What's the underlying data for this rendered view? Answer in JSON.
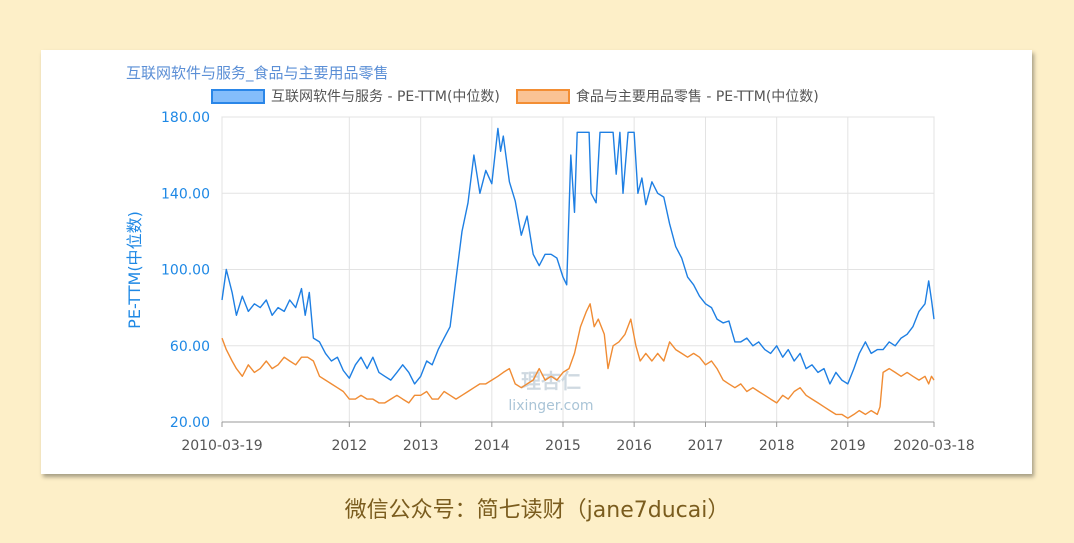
{
  "chart_data": {
    "type": "line",
    "title": "互联网软件与服务_食品与主要用品零售",
    "ylabel": "PE-TTM(中位数)",
    "ylim": [
      20,
      180
    ],
    "yticks": [
      "20.00",
      "60.00",
      "100.00",
      "140.00",
      "180.00"
    ],
    "x_start": "2010-03-19",
    "x_end": "2020-03-18",
    "xticks": [
      {
        "label": "2010-03-19",
        "x": "2010-03-19"
      },
      {
        "label": "2012",
        "x": "2012-01-01"
      },
      {
        "label": "2013",
        "x": "2013-01-01"
      },
      {
        "label": "2014",
        "x": "2014-01-01"
      },
      {
        "label": "2015",
        "x": "2015-01-01"
      },
      {
        "label": "2016",
        "x": "2016-01-01"
      },
      {
        "label": "2017",
        "x": "2017-01-01"
      },
      {
        "label": "2018",
        "x": "2018-01-01"
      },
      {
        "label": "2019",
        "x": "2019-01-01"
      },
      {
        "label": "2020-03-18",
        "x": "2020-03-18"
      }
    ],
    "grid": true,
    "legend_position": "top",
    "series": [
      {
        "name": "互联网软件与服务 - PE-TTM(中位数)",
        "color": "#1e7fe3",
        "points": [
          [
            "2010-03-19",
            84
          ],
          [
            "2010-04-10",
            100
          ],
          [
            "2010-05-10",
            88
          ],
          [
            "2010-06-01",
            76
          ],
          [
            "2010-07-01",
            86
          ],
          [
            "2010-08-01",
            78
          ],
          [
            "2010-09-01",
            82
          ],
          [
            "2010-10-01",
            80
          ],
          [
            "2010-11-01",
            84
          ],
          [
            "2010-12-01",
            76
          ],
          [
            "2011-01-01",
            80
          ],
          [
            "2011-02-01",
            78
          ],
          [
            "2011-03-01",
            84
          ],
          [
            "2011-04-01",
            80
          ],
          [
            "2011-05-01",
            90
          ],
          [
            "2011-05-20",
            76
          ],
          [
            "2011-06-10",
            88
          ],
          [
            "2011-07-01",
            64
          ],
          [
            "2011-08-01",
            62
          ],
          [
            "2011-09-01",
            56
          ],
          [
            "2011-10-01",
            52
          ],
          [
            "2011-11-01",
            54
          ],
          [
            "2011-12-01",
            47
          ],
          [
            "2012-01-01",
            43
          ],
          [
            "2012-02-01",
            50
          ],
          [
            "2012-03-01",
            54
          ],
          [
            "2012-04-01",
            48
          ],
          [
            "2012-05-01",
            54
          ],
          [
            "2012-06-01",
            46
          ],
          [
            "2012-07-01",
            44
          ],
          [
            "2012-08-01",
            42
          ],
          [
            "2012-09-01",
            46
          ],
          [
            "2012-10-01",
            50
          ],
          [
            "2012-11-01",
            46
          ],
          [
            "2012-12-01",
            40
          ],
          [
            "2013-01-01",
            44
          ],
          [
            "2013-02-01",
            52
          ],
          [
            "2013-03-01",
            50
          ],
          [
            "2013-04-01",
            58
          ],
          [
            "2013-05-01",
            64
          ],
          [
            "2013-06-01",
            70
          ],
          [
            "2013-07-01",
            95
          ],
          [
            "2013-08-01",
            120
          ],
          [
            "2013-09-01",
            135
          ],
          [
            "2013-10-01",
            160
          ],
          [
            "2013-11-01",
            140
          ],
          [
            "2013-12-01",
            152
          ],
          [
            "2014-01-01",
            145
          ],
          [
            "2014-02-01",
            174
          ],
          [
            "2014-02-15",
            162
          ],
          [
            "2014-03-01",
            170
          ],
          [
            "2014-04-01",
            146
          ],
          [
            "2014-05-01",
            136
          ],
          [
            "2014-06-01",
            118
          ],
          [
            "2014-07-01",
            128
          ],
          [
            "2014-08-01",
            108
          ],
          [
            "2014-09-01",
            102
          ],
          [
            "2014-10-01",
            108
          ],
          [
            "2014-11-01",
            108
          ],
          [
            "2014-12-01",
            106
          ],
          [
            "2015-01-01",
            96
          ],
          [
            "2015-01-20",
            92
          ],
          [
            "2015-02-10",
            160
          ],
          [
            "2015-03-01",
            130
          ],
          [
            "2015-03-15",
            172
          ],
          [
            "2015-05-15",
            172
          ],
          [
            "2015-05-25",
            140
          ],
          [
            "2015-06-20",
            135
          ],
          [
            "2015-07-10",
            172
          ],
          [
            "2015-09-15",
            172
          ],
          [
            "2015-10-01",
            150
          ],
          [
            "2015-10-20",
            172
          ],
          [
            "2015-11-05",
            140
          ],
          [
            "2015-12-01",
            172
          ],
          [
            "2016-01-01",
            172
          ],
          [
            "2016-01-20",
            140
          ],
          [
            "2016-02-10",
            148
          ],
          [
            "2016-03-01",
            134
          ],
          [
            "2016-04-01",
            146
          ],
          [
            "2016-05-01",
            140
          ],
          [
            "2016-06-01",
            138
          ],
          [
            "2016-07-01",
            124
          ],
          [
            "2016-08-01",
            112
          ],
          [
            "2016-09-01",
            106
          ],
          [
            "2016-10-01",
            96
          ],
          [
            "2016-11-01",
            92
          ],
          [
            "2016-12-01",
            86
          ],
          [
            "2017-01-01",
            82
          ],
          [
            "2017-02-01",
            80
          ],
          [
            "2017-03-01",
            74
          ],
          [
            "2017-04-01",
            72
          ],
          [
            "2017-05-01",
            73
          ],
          [
            "2017-06-01",
            62
          ],
          [
            "2017-07-01",
            62
          ],
          [
            "2017-08-01",
            64
          ],
          [
            "2017-09-01",
            60
          ],
          [
            "2017-10-01",
            62
          ],
          [
            "2017-11-01",
            58
          ],
          [
            "2017-12-01",
            56
          ],
          [
            "2018-01-01",
            60
          ],
          [
            "2018-02-01",
            54
          ],
          [
            "2018-03-01",
            58
          ],
          [
            "2018-04-01",
            52
          ],
          [
            "2018-05-01",
            56
          ],
          [
            "2018-06-01",
            48
          ],
          [
            "2018-07-01",
            50
          ],
          [
            "2018-08-01",
            46
          ],
          [
            "2018-09-01",
            48
          ],
          [
            "2018-10-01",
            40
          ],
          [
            "2018-11-01",
            46
          ],
          [
            "2018-12-01",
            42
          ],
          [
            "2019-01-01",
            40
          ],
          [
            "2019-02-01",
            48
          ],
          [
            "2019-03-01",
            56
          ],
          [
            "2019-04-01",
            62
          ],
          [
            "2019-05-01",
            56
          ],
          [
            "2019-06-01",
            58
          ],
          [
            "2019-07-01",
            58
          ],
          [
            "2019-08-01",
            62
          ],
          [
            "2019-09-01",
            60
          ],
          [
            "2019-10-01",
            64
          ],
          [
            "2019-11-01",
            66
          ],
          [
            "2019-12-01",
            70
          ],
          [
            "2020-01-01",
            78
          ],
          [
            "2020-02-01",
            82
          ],
          [
            "2020-02-20",
            94
          ],
          [
            "2020-03-05",
            84
          ],
          [
            "2020-03-18",
            74
          ]
        ]
      },
      {
        "name": "食品与主要用品零售 - PE-TTM(中位数)",
        "color": "#f08c34",
        "points": [
          [
            "2010-03-19",
            64
          ],
          [
            "2010-04-10",
            58
          ],
          [
            "2010-05-10",
            52
          ],
          [
            "2010-06-01",
            48
          ],
          [
            "2010-07-01",
            44
          ],
          [
            "2010-08-01",
            50
          ],
          [
            "2010-09-01",
            46
          ],
          [
            "2010-10-01",
            48
          ],
          [
            "2010-11-01",
            52
          ],
          [
            "2010-12-01",
            48
          ],
          [
            "2011-01-01",
            50
          ],
          [
            "2011-02-01",
            54
          ],
          [
            "2011-03-01",
            52
          ],
          [
            "2011-04-01",
            50
          ],
          [
            "2011-05-01",
            54
          ],
          [
            "2011-06-01",
            54
          ],
          [
            "2011-07-01",
            52
          ],
          [
            "2011-08-01",
            44
          ],
          [
            "2011-09-01",
            42
          ],
          [
            "2011-10-01",
            40
          ],
          [
            "2011-11-01",
            38
          ],
          [
            "2011-12-01",
            36
          ],
          [
            "2012-01-01",
            32
          ],
          [
            "2012-02-01",
            32
          ],
          [
            "2012-03-01",
            34
          ],
          [
            "2012-04-01",
            32
          ],
          [
            "2012-05-01",
            32
          ],
          [
            "2012-06-01",
            30
          ],
          [
            "2012-07-01",
            30
          ],
          [
            "2012-08-01",
            32
          ],
          [
            "2012-09-01",
            34
          ],
          [
            "2012-10-01",
            32
          ],
          [
            "2012-11-01",
            30
          ],
          [
            "2012-12-01",
            34
          ],
          [
            "2013-01-01",
            34
          ],
          [
            "2013-02-01",
            36
          ],
          [
            "2013-03-01",
            32
          ],
          [
            "2013-04-01",
            32
          ],
          [
            "2013-05-01",
            36
          ],
          [
            "2013-06-01",
            34
          ],
          [
            "2013-07-01",
            32
          ],
          [
            "2013-08-01",
            34
          ],
          [
            "2013-09-01",
            36
          ],
          [
            "2013-10-01",
            38
          ],
          [
            "2013-11-01",
            40
          ],
          [
            "2013-12-01",
            40
          ],
          [
            "2014-01-01",
            42
          ],
          [
            "2014-02-01",
            44
          ],
          [
            "2014-03-01",
            46
          ],
          [
            "2014-04-01",
            48
          ],
          [
            "2014-05-01",
            40
          ],
          [
            "2014-06-01",
            38
          ],
          [
            "2014-07-01",
            40
          ],
          [
            "2014-08-01",
            42
          ],
          [
            "2014-09-01",
            48
          ],
          [
            "2014-10-01",
            42
          ],
          [
            "2014-11-01",
            44
          ],
          [
            "2014-12-01",
            42
          ],
          [
            "2015-01-01",
            46
          ],
          [
            "2015-02-01",
            48
          ],
          [
            "2015-03-01",
            56
          ],
          [
            "2015-04-01",
            70
          ],
          [
            "2015-05-01",
            78
          ],
          [
            "2015-05-20",
            82
          ],
          [
            "2015-06-10",
            70
          ],
          [
            "2015-07-01",
            74
          ],
          [
            "2015-08-01",
            66
          ],
          [
            "2015-08-20",
            48
          ],
          [
            "2015-09-15",
            60
          ],
          [
            "2015-10-15",
            62
          ],
          [
            "2015-11-15",
            66
          ],
          [
            "2015-12-15",
            74
          ],
          [
            "2016-01-10",
            60
          ],
          [
            "2016-02-01",
            52
          ],
          [
            "2016-03-01",
            56
          ],
          [
            "2016-04-01",
            52
          ],
          [
            "2016-05-01",
            56
          ],
          [
            "2016-06-01",
            52
          ],
          [
            "2016-07-01",
            62
          ],
          [
            "2016-08-01",
            58
          ],
          [
            "2016-09-01",
            56
          ],
          [
            "2016-10-01",
            54
          ],
          [
            "2016-11-01",
            56
          ],
          [
            "2016-12-01",
            54
          ],
          [
            "2017-01-01",
            50
          ],
          [
            "2017-02-01",
            52
          ],
          [
            "2017-03-01",
            48
          ],
          [
            "2017-04-01",
            42
          ],
          [
            "2017-05-01",
            40
          ],
          [
            "2017-06-01",
            38
          ],
          [
            "2017-07-01",
            40
          ],
          [
            "2017-08-01",
            36
          ],
          [
            "2017-09-01",
            38
          ],
          [
            "2017-10-01",
            36
          ],
          [
            "2017-11-01",
            34
          ],
          [
            "2017-12-01",
            32
          ],
          [
            "2018-01-01",
            30
          ],
          [
            "2018-02-01",
            34
          ],
          [
            "2018-03-01",
            32
          ],
          [
            "2018-04-01",
            36
          ],
          [
            "2018-05-01",
            38
          ],
          [
            "2018-06-01",
            34
          ],
          [
            "2018-07-01",
            32
          ],
          [
            "2018-08-01",
            30
          ],
          [
            "2018-09-01",
            28
          ],
          [
            "2018-10-01",
            26
          ],
          [
            "2018-11-01",
            24
          ],
          [
            "2018-12-01",
            24
          ],
          [
            "2019-01-01",
            22
          ],
          [
            "2019-02-01",
            24
          ],
          [
            "2019-03-01",
            26
          ],
          [
            "2019-04-01",
            24
          ],
          [
            "2019-05-01",
            26
          ],
          [
            "2019-06-01",
            24
          ],
          [
            "2019-06-15",
            28
          ],
          [
            "2019-07-01",
            46
          ],
          [
            "2019-08-01",
            48
          ],
          [
            "2019-09-01",
            46
          ],
          [
            "2019-10-01",
            44
          ],
          [
            "2019-11-01",
            46
          ],
          [
            "2019-12-01",
            44
          ],
          [
            "2020-01-01",
            42
          ],
          [
            "2020-02-01",
            44
          ],
          [
            "2020-02-20",
            40
          ],
          [
            "2020-03-05",
            44
          ],
          [
            "2020-03-18",
            42
          ]
        ]
      }
    ]
  },
  "watermark": {
    "logo": "理杏仁",
    "url": "lixinger.com"
  },
  "footer": "微信公众号：简七读财（jane7ducai）"
}
